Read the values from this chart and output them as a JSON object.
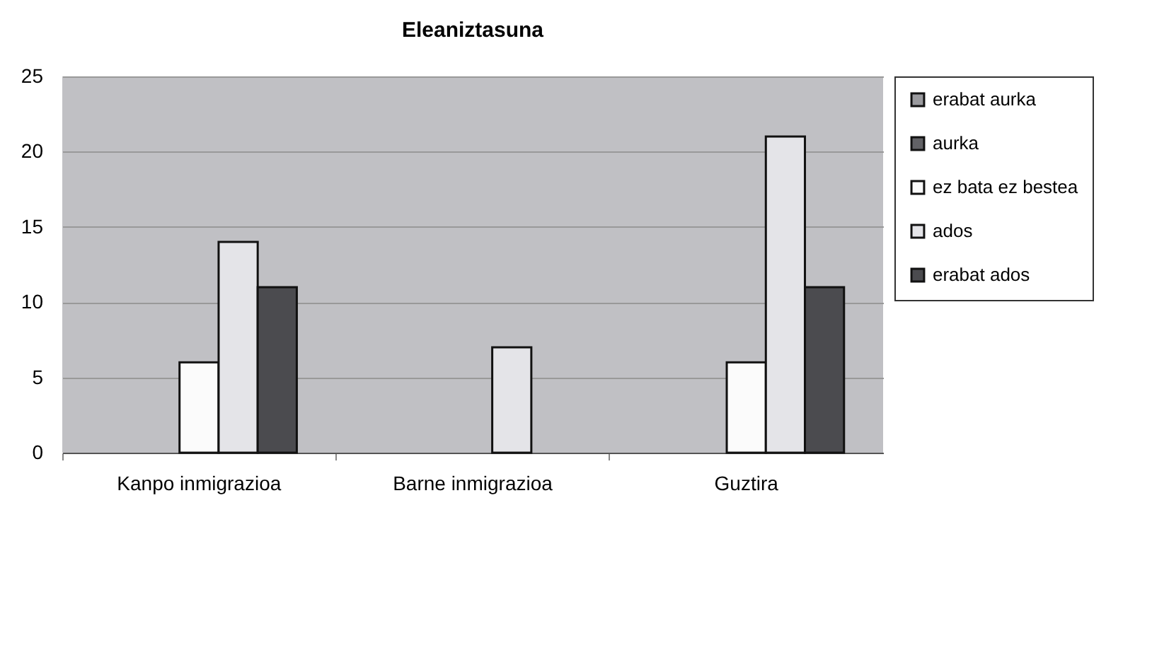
{
  "chart_data": {
    "type": "bar",
    "title": "Eleaniztasuna",
    "categories": [
      "Kanpo inmigrazioa",
      "Barne inmigrazioa",
      "Guztira"
    ],
    "series": [
      {
        "name": "erabat aurka",
        "color": "#9a9a9e",
        "values": [
          null,
          null,
          null
        ]
      },
      {
        "name": "aurka",
        "color": "#626266",
        "values": [
          null,
          null,
          null
        ]
      },
      {
        "name": "ez bata ez bestea",
        "color": "#fbfbfb",
        "values": [
          6,
          null,
          6
        ]
      },
      {
        "name": "ados",
        "color": "#e4e4e8",
        "values": [
          14,
          7,
          21
        ]
      },
      {
        "name": "erabat ados",
        "color": "#4b4b4f",
        "values": [
          11,
          null,
          11
        ]
      }
    ],
    "ylim": [
      0,
      25
    ],
    "yticks": [
      0,
      5,
      10,
      15,
      20,
      25
    ],
    "grid": "y",
    "legend": "right"
  }
}
